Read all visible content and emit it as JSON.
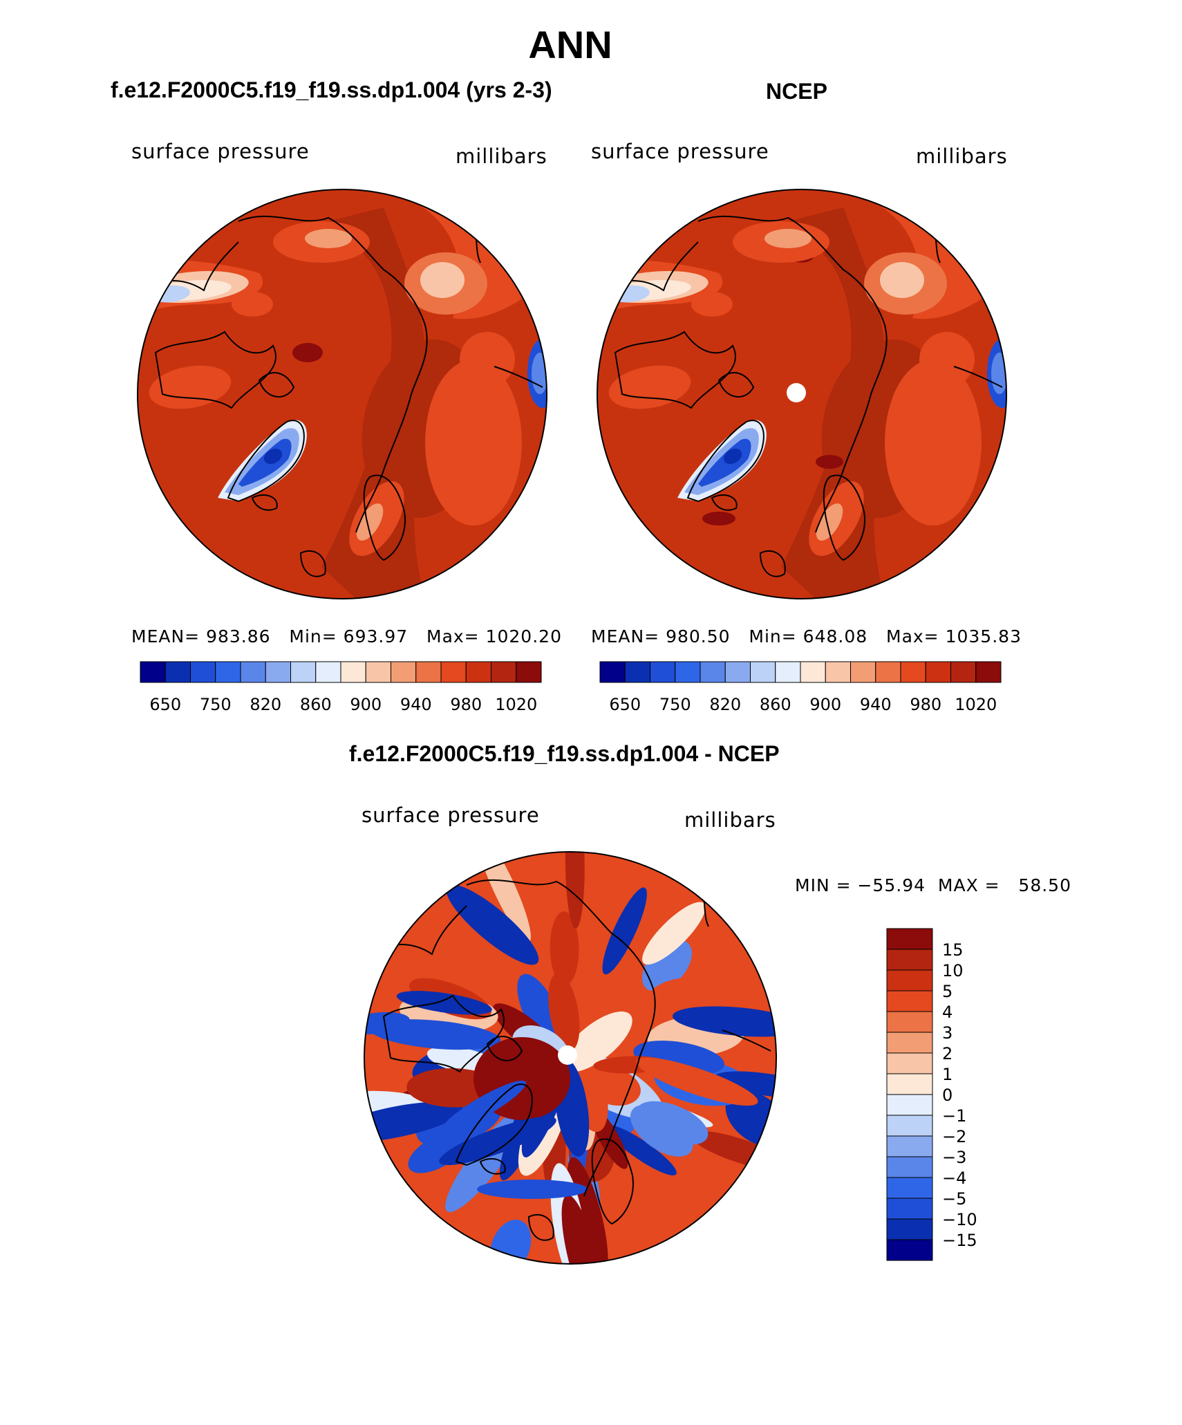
{
  "page": {
    "title": "ANN"
  },
  "panels": [
    {
      "id": "model",
      "header": "f.e12.F2000C5.f19_f19.ss.dp1.004 (yrs 2-3)",
      "variable": "surface pressure",
      "units": "millibars",
      "stats": {
        "mean_label": "MEAN=",
        "mean": "983.86",
        "min_label": "Min=",
        "min": "693.97",
        "max_label": "Max=",
        "max": "1020.20"
      }
    },
    {
      "id": "obs",
      "header": "NCEP",
      "variable": "surface pressure",
      "units": "millibars",
      "stats": {
        "mean_label": "MEAN=",
        "mean": "980.50",
        "min_label": "Min=",
        "min": "648.08",
        "max_label": "Max=",
        "max": "1035.83"
      }
    }
  ],
  "abs_colorbar": {
    "colors": [
      "#00008b",
      "#0a2fb0",
      "#1f4fd6",
      "#2f66e8",
      "#5a86ea",
      "#8aaaf0",
      "#bcd2f7",
      "#e4eefc",
      "#fde8d8",
      "#f8c5a8",
      "#f29d74",
      "#ec7345",
      "#e4491f",
      "#cc3212",
      "#b32510",
      "#8c0b0b"
    ],
    "labels": [
      "650",
      "750",
      "820",
      "860",
      "900",
      "940",
      "980",
      "1020"
    ]
  },
  "diff_panel": {
    "header": "f.e12.F2000C5.f19_f19.ss.dp1.004 - NCEP",
    "variable": "surface pressure",
    "units": "millibars",
    "minmax": "MIN = −55.94  MAX =   58.50"
  },
  "diff_colorbar": {
    "colors_top_to_bottom": [
      "#8c0b0b",
      "#b32510",
      "#cc3212",
      "#e4491f",
      "#ec7345",
      "#f29d74",
      "#f8c5a8",
      "#fde8d8",
      "#e4eefc",
      "#bcd2f7",
      "#8aaaf0",
      "#5a86ea",
      "#2f66e8",
      "#1f4fd6",
      "#0a2fb0",
      "#00008b"
    ],
    "labels": [
      "15",
      "10",
      "5",
      "4",
      "3",
      "2",
      "1",
      "0",
      "−1",
      "−2",
      "−3",
      "−4",
      "−5",
      "−10",
      "−15"
    ]
  },
  "colors": {
    "base_red": "#c8330f",
    "dark_red": "#b02a0c",
    "deep_red": "#8c0b0b",
    "orange": "#e4491f",
    "blue": "#1f4fd6",
    "light_blue": "#bcd2f7",
    "white": "#ffffff"
  }
}
